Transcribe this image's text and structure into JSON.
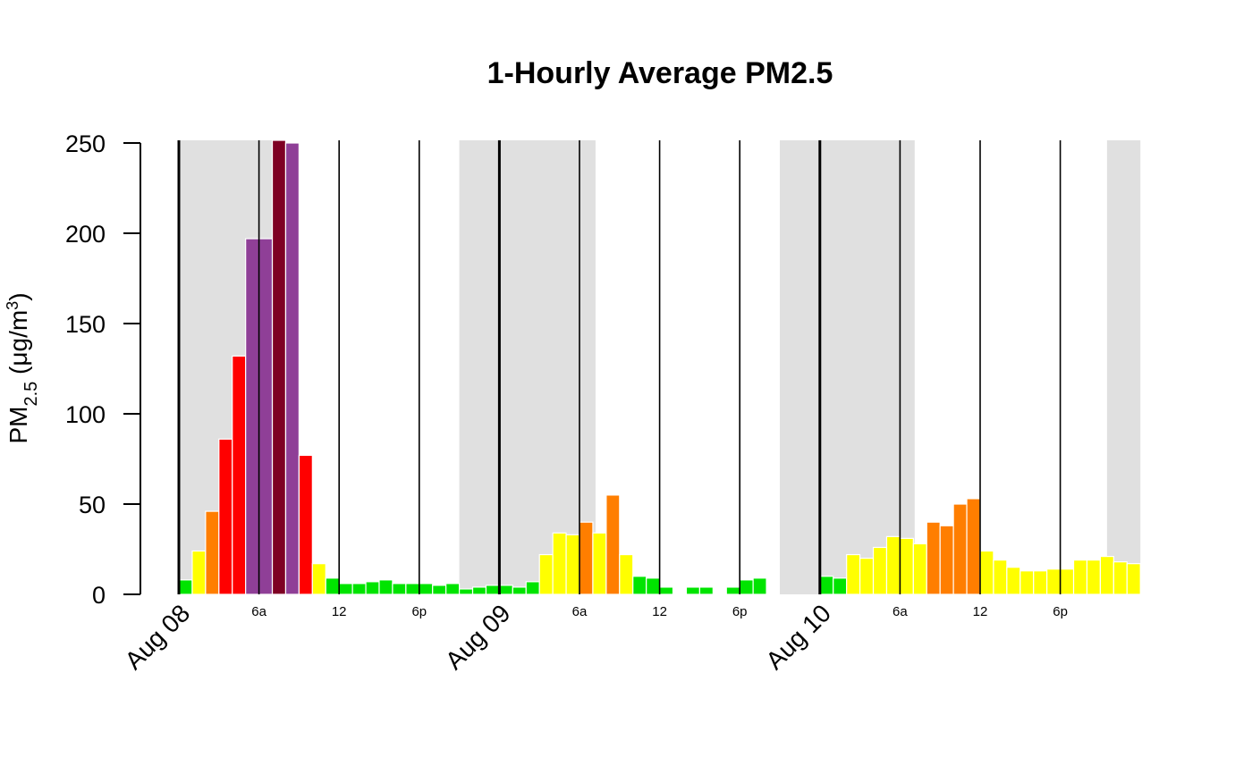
{
  "chart_data": {
    "type": "bar",
    "title": "1-Hourly Average PM2.5",
    "ylabel": {
      "main": "PM",
      "sub": "2.5",
      "unit_open": " (μg/m",
      "sup": "3",
      "unit_close": ")"
    },
    "ylim": [
      0,
      250
    ],
    "yticks": [
      "0",
      "50",
      "100",
      "150",
      "200",
      "250"
    ],
    "x_start": "Aug 08 00:00",
    "interval_hours": 1,
    "day_labels": [
      "Aug 08",
      "Aug 09",
      "Aug 10"
    ],
    "hour_labels": [
      "6a",
      "12",
      "6p"
    ],
    "night_shading": [
      {
        "start_hour": 0,
        "end_hour": 7.0
      },
      {
        "start_hour": 21.0,
        "end_hour": 31.2
      },
      {
        "start_hour": 45.0,
        "end_hour": 55.1
      },
      {
        "start_hour": 69.5,
        "end_hour": 72.0
      }
    ],
    "values": [
      8,
      24,
      46,
      86,
      132,
      197,
      197,
      252,
      250,
      77,
      17,
      9,
      6,
      6,
      7,
      8,
      6,
      6,
      6,
      5,
      6,
      3,
      4,
      5,
      5,
      4,
      7,
      22,
      34,
      33,
      40,
      34,
      55,
      22,
      10,
      9,
      4,
      null,
      4,
      4,
      null,
      4,
      8,
      9,
      null,
      null,
      null,
      null,
      10,
      9,
      22,
      20,
      26,
      32,
      31,
      28,
      40,
      38,
      50,
      53,
      24,
      19,
      15,
      13,
      13,
      14,
      14,
      19,
      19,
      21,
      18,
      17
    ],
    "aqi_colors": [
      {
        "max": 12,
        "color": "#00e400"
      },
      {
        "max": 35.4,
        "color": "#ffff00"
      },
      {
        "max": 55.4,
        "color": "#ff7e00"
      },
      {
        "max": 150.4,
        "color": "#ff0000"
      },
      {
        "max": 250.4,
        "color": "#8f3f97"
      },
      {
        "max": 100000,
        "color": "#7e0023"
      }
    ],
    "colors": {
      "night": "#e0e0e0",
      "axis": "#000000",
      "bar_border": "#ffffff"
    },
    "grid": false,
    "legend": "none"
  }
}
